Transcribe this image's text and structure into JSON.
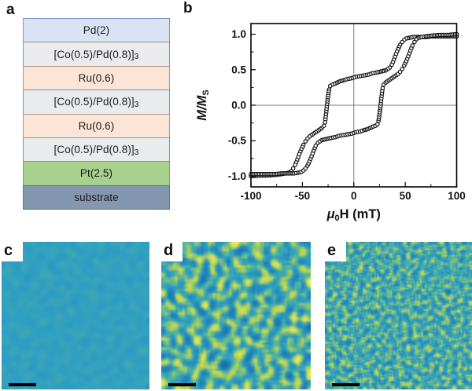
{
  "panel_a": {
    "label": "a",
    "layers": [
      {
        "name": "Pd(2)",
        "sub": "",
        "fill": "#dae3f3",
        "border": "#7c96c4"
      },
      {
        "name": "[Co(0.5)/Pd(0.8)]",
        "sub": "3",
        "fill": "#e9ebed",
        "border": "#8d9093"
      },
      {
        "name": "Ru(0.6)",
        "sub": "",
        "fill": "#fbe5d6",
        "border": "#b09483"
      },
      {
        "name": "[Co(0.5)/Pd(0.8)]",
        "sub": "3",
        "fill": "#e9ebed",
        "border": "#8d9093"
      },
      {
        "name": "Ru(0.6)",
        "sub": "",
        "fill": "#fbe5d6",
        "border": "#b09483"
      },
      {
        "name": "[Co(0.5)/Pd(0.8)]",
        "sub": "3",
        "fill": "#e9ebed",
        "border": "#8d9093"
      },
      {
        "name": "Pt(2.5)",
        "sub": "",
        "fill": "#a9d18e",
        "border": "#76a35c"
      },
      {
        "name": "substrate",
        "sub": "",
        "fill": "#8497b0",
        "border": "#64748a"
      }
    ]
  },
  "panel_b": {
    "label": "b",
    "xlabel_parts": {
      "mu": "μ",
      "sub": "0",
      "rest": "H (mT)"
    },
    "ylabel_parts": {
      "main": "M/M",
      "sub": "S"
    }
  },
  "panel_c": {
    "label": "c"
  },
  "panel_d": {
    "label": "d"
  },
  "panel_e": {
    "label": "e"
  },
  "colors": {
    "marker": "#111111",
    "marker_fill": "#ffffff",
    "crosshair": "#7f7f7f",
    "frame": "#000000",
    "mfm_palette": [
      "#1a5f9e",
      "#2387bb",
      "#2f9fc4",
      "#5cb795",
      "#b5d255",
      "#eceb5a"
    ]
  },
  "chart_data": {
    "type": "scatter",
    "title": "",
    "xlabel": "μ0H (mT)",
    "ylabel": "M/MS",
    "xlim": [
      -100,
      100
    ],
    "ylim": [
      -1.15,
      1.15
    ],
    "xticks": [
      -100,
      -50,
      0,
      50,
      100
    ],
    "xminor": [
      -75,
      -25,
      25,
      75
    ],
    "yticks": [
      -1.0,
      -0.5,
      0.0,
      0.5,
      1.0
    ],
    "yminor": [
      -0.75,
      -0.25,
      0.25,
      0.75
    ],
    "grid": false,
    "crosshair_at_origin": true,
    "marker": "open-circle",
    "legend": "none",
    "series": [
      {
        "name": "descending-branch",
        "x": [
          100,
          92,
          84,
          76,
          70,
          64,
          58,
          54,
          51,
          49,
          47,
          45,
          43,
          41,
          39,
          37,
          35,
          33,
          31,
          28,
          25,
          22,
          18,
          14,
          10,
          6,
          2,
          -2,
          -6,
          -10,
          -13,
          -16,
          -19,
          -21,
          -23,
          -24,
          -25,
          -26,
          -27,
          -28,
          -29,
          -31,
          -34,
          -37,
          -40,
          -43,
          -45,
          -47,
          -49,
          -51,
          -53,
          -55,
          -57,
          -59,
          -61,
          -63,
          -66,
          -70,
          -76,
          -84,
          -92,
          -100
        ],
        "y": [
          0.97,
          0.97,
          0.97,
          0.97,
          0.96,
          0.96,
          0.96,
          0.95,
          0.94,
          0.92,
          0.89,
          0.85,
          0.79,
          0.72,
          0.64,
          0.57,
          0.53,
          0.51,
          0.49,
          0.48,
          0.47,
          0.46,
          0.45,
          0.43,
          0.42,
          0.41,
          0.4,
          0.38,
          0.37,
          0.35,
          0.34,
          0.32,
          0.3,
          0.29,
          0.27,
          0.22,
          0.13,
          0.01,
          -0.13,
          -0.24,
          -0.29,
          -0.32,
          -0.35,
          -0.38,
          -0.41,
          -0.44,
          -0.47,
          -0.51,
          -0.56,
          -0.62,
          -0.69,
          -0.77,
          -0.84,
          -0.89,
          -0.93,
          -0.95,
          -0.96,
          -0.97,
          -0.98,
          -0.99,
          -0.99,
          -1.0
        ]
      },
      {
        "name": "ascending-branch",
        "x": [
          -100,
          -92,
          -84,
          -76,
          -70,
          -64,
          -58,
          -54,
          -51,
          -49,
          -47,
          -45,
          -43,
          -41,
          -39,
          -37,
          -35,
          -33,
          -31,
          -28,
          -25,
          -22,
          -18,
          -14,
          -10,
          -6,
          -2,
          2,
          6,
          10,
          13,
          16,
          19,
          21,
          23,
          24,
          25,
          26,
          27,
          28,
          29,
          31,
          34,
          37,
          40,
          43,
          45,
          47,
          49,
          51,
          53,
          55,
          57,
          59,
          61,
          63,
          66,
          70,
          76,
          84,
          92,
          100
        ],
        "y": [
          -0.97,
          -0.97,
          -0.97,
          -0.97,
          -0.96,
          -0.96,
          -0.96,
          -0.95,
          -0.94,
          -0.92,
          -0.89,
          -0.85,
          -0.79,
          -0.72,
          -0.64,
          -0.57,
          -0.53,
          -0.51,
          -0.49,
          -0.48,
          -0.47,
          -0.46,
          -0.45,
          -0.43,
          -0.42,
          -0.41,
          -0.4,
          -0.38,
          -0.37,
          -0.35,
          -0.34,
          -0.32,
          -0.3,
          -0.29,
          -0.27,
          -0.22,
          -0.13,
          -0.01,
          0.13,
          0.24,
          0.29,
          0.32,
          0.35,
          0.38,
          0.41,
          0.44,
          0.47,
          0.51,
          0.56,
          0.62,
          0.69,
          0.77,
          0.84,
          0.89,
          0.93,
          0.95,
          0.96,
          0.97,
          0.98,
          0.99,
          0.99,
          1.0
        ]
      }
    ]
  }
}
